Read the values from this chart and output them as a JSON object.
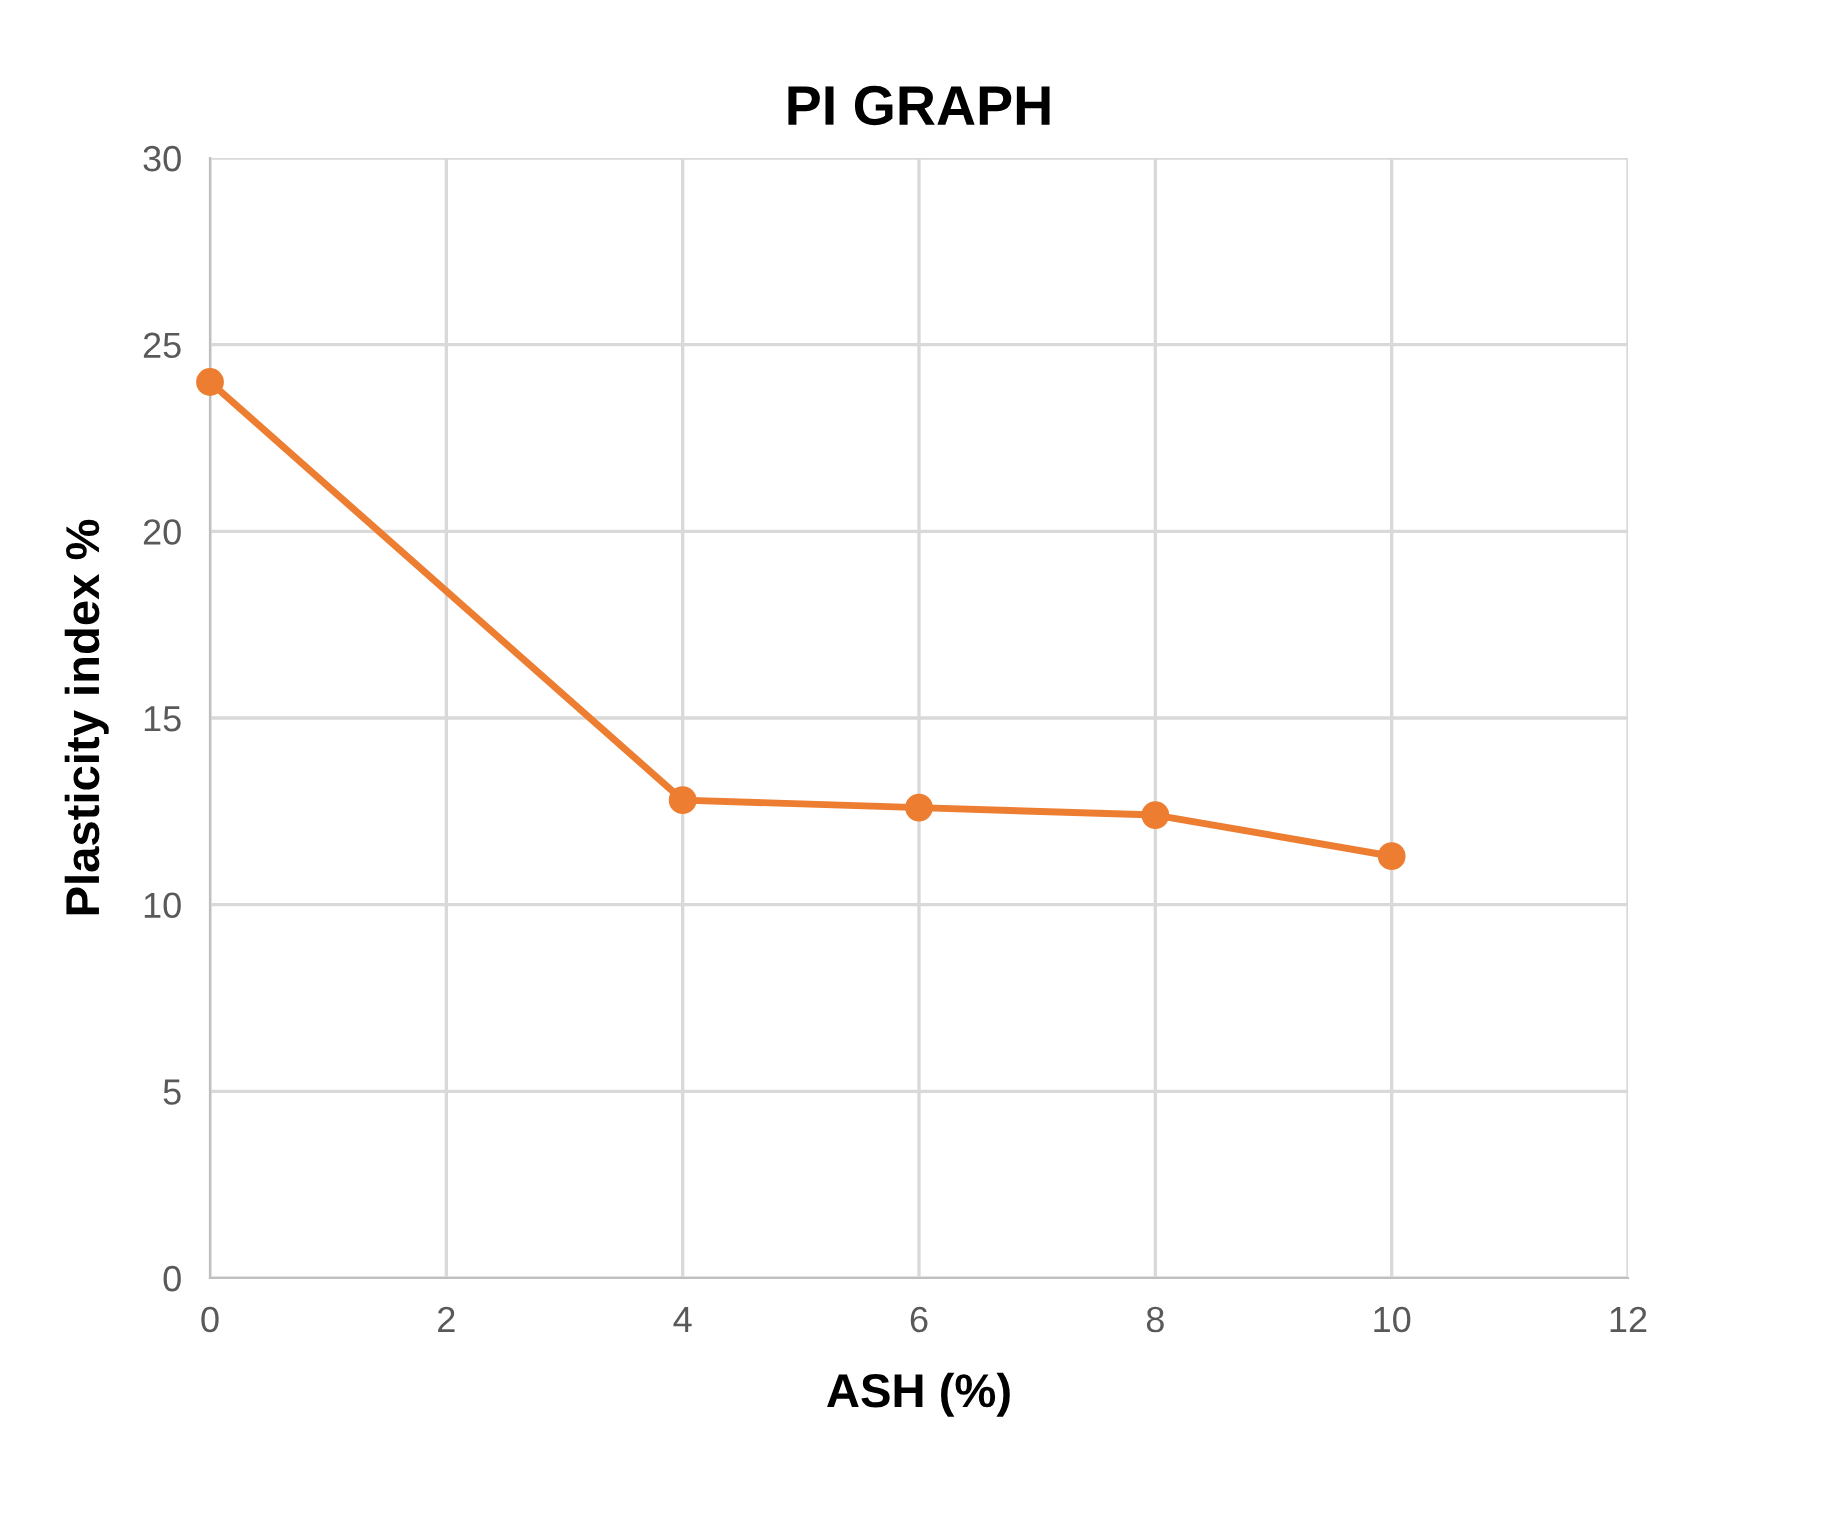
{
  "chart_data": {
    "type": "line",
    "title": "PI GRAPH",
    "xlabel": "ASH (%)",
    "ylabel": "Plasticity index %",
    "x": [
      0,
      4,
      6,
      8,
      10
    ],
    "series": [
      {
        "color": "#ed7d31",
        "values": [
          24.0,
          12.8,
          12.6,
          12.4,
          11.3
        ]
      }
    ],
    "xlim": [
      0,
      12
    ],
    "xticks": [
      0,
      2,
      4,
      6,
      8,
      10,
      12
    ],
    "ylim": [
      0,
      30
    ],
    "yticks": [
      0,
      5,
      10,
      15,
      20,
      25,
      30
    ],
    "grid": true,
    "marker": "circle",
    "line_style": "solid"
  }
}
